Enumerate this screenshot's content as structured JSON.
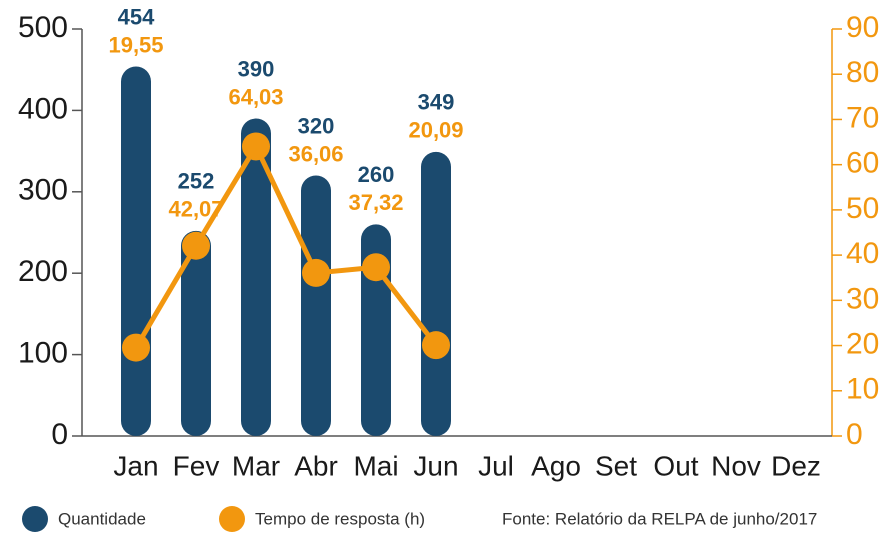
{
  "chart_data": {
    "type": "bar",
    "categories": [
      "Jan",
      "Fev",
      "Mar",
      "Abr",
      "Mai",
      "Jun",
      "Jul",
      "Ago",
      "Set",
      "Out",
      "Nov",
      "Dez"
    ],
    "series": [
      {
        "name": "Quantidade",
        "color": "#1b4a6e",
        "values": [
          454,
          252,
          390,
          320,
          260,
          349,
          null,
          null,
          null,
          null,
          null,
          null
        ]
      },
      {
        "name": "Tempo de resposta (h)",
        "color": "#f2970f",
        "axis": "y2",
        "values": [
          19.55,
          42.07,
          64.03,
          36.06,
          37.32,
          20.09,
          null,
          null,
          null,
          null,
          null,
          null
        ],
        "value_labels": [
          "19,55",
          "42,07",
          "64,03",
          "36,06",
          "37,32",
          "20,09",
          null,
          null,
          null,
          null,
          null,
          null
        ]
      }
    ],
    "ylim": [
      0,
      500
    ],
    "yticks": [
      0,
      100,
      200,
      300,
      400,
      500
    ],
    "y2lim": [
      0,
      90
    ],
    "y2ticks": [
      0,
      10,
      20,
      30,
      40,
      50,
      60,
      70,
      80,
      90
    ],
    "source": "Fonte: Relatório da RELPA de junho/2017"
  }
}
